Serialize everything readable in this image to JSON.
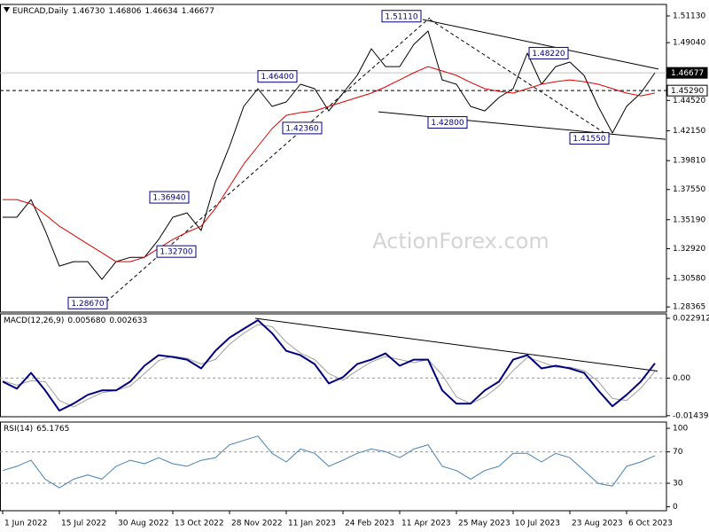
{
  "chart_data": [
    {
      "type": "line",
      "title": "EURCAD,Daily",
      "header_values": [
        "1.46730",
        "1.46806",
        "1.46634",
        "1.46677"
      ],
      "x": [
        0,
        8,
        16,
        24,
        32,
        40,
        48,
        56,
        64,
        72,
        80,
        88,
        96,
        104,
        112,
        120,
        128,
        136,
        144,
        152,
        160,
        168,
        176,
        184,
        192,
        200,
        208,
        216,
        224,
        232,
        240,
        248,
        256,
        264,
        272,
        280,
        288,
        296,
        304,
        312,
        320,
        328,
        336,
        344,
        352,
        360,
        368
      ],
      "xlim": [
        -1.5,
        374.5
      ],
      "ylim": [
        1.2796,
        1.5203
      ],
      "yticks": [
        {
          "value": 1.5113,
          "label": "1.51130"
        },
        {
          "value": 1.4904,
          "label": "1.49040"
        },
        {
          "value": 1.4452,
          "label": "1.44520"
        },
        {
          "value": 1.4215,
          "label": "1.42150"
        },
        {
          "value": 1.3981,
          "label": "1.39810"
        },
        {
          "value": 1.3755,
          "label": "1.37550"
        },
        {
          "value": 1.3519,
          "label": "1.35190"
        },
        {
          "value": 1.3292,
          "label": "1.32920"
        },
        {
          "value": 1.3058,
          "label": "1.30580"
        },
        {
          "value": 1.28365,
          "label": "1.28365"
        }
      ],
      "series": [
        {
          "color": "#000000",
          "width": 1,
          "values": [
            1.3538,
            1.3538,
            1.3676,
            1.3434,
            1.3156,
            1.3191,
            1.3191,
            1.3052,
            1.3191,
            1.3225,
            1.3225,
            1.3364,
            1.3538,
            1.3572,
            1.3434,
            1.3815,
            1.4093,
            1.4405,
            1.4544,
            1.4405,
            1.444,
            1.4579,
            1.4544,
            1.437,
            1.4509,
            1.4648,
            1.4856,
            1.4717,
            1.4717,
            1.4891,
            1.4995,
            1.4613,
            1.4579,
            1.4405,
            1.437,
            1.4475,
            1.4544,
            1.4822,
            1.4579,
            1.4717,
            1.4752,
            1.4648,
            1.4405,
            1.4197,
            1.4405,
            1.4509,
            1.4668
          ]
        },
        {
          "color": "#e00000",
          "width": 1,
          "values": [
            1.3676,
            1.3676,
            1.3642,
            1.3558,
            1.3468,
            1.3399,
            1.3329,
            1.326,
            1.3191,
            1.3191,
            1.3225,
            1.3295,
            1.3364,
            1.342,
            1.3468,
            1.3607,
            1.378,
            1.3954,
            1.4093,
            1.4232,
            1.4336,
            1.4357,
            1.437,
            1.4405,
            1.444,
            1.4475,
            1.4509,
            1.4558,
            1.4613,
            1.4669,
            1.4717,
            1.4683,
            1.4648,
            1.4593,
            1.4544,
            1.4523,
            1.4509,
            1.4544,
            1.4579,
            1.4599,
            1.4613,
            1.4599,
            1.4579,
            1.4544,
            1.4509,
            1.4488,
            1.4509
          ]
        }
      ],
      "lines": [
        {
          "style": "solid",
          "x": [
            237,
            370
          ],
          "values": [
            1.5085,
            1.4697
          ]
        },
        {
          "style": "solid",
          "x": [
            212,
            374
          ],
          "values": [
            1.4363,
            1.4148
          ]
        },
        {
          "style": "dashed",
          "x": [
            58.5,
            241
          ],
          "values": [
            1.2878,
            1.5099
          ]
        },
        {
          "style": "dashed",
          "x": [
            241,
            343.5
          ],
          "values": [
            1.5085,
            1.4162
          ]
        }
      ],
      "annotations": [
        {
          "label": "1.51110",
          "x": 237,
          "value": 1.5111
        },
        {
          "label": "1.48220",
          "x": 296,
          "value": 1.4822
        },
        {
          "label": "1.46400",
          "x": 143,
          "value": 1.464
        },
        {
          "label": "1.42360",
          "x": 157,
          "value": 1.4236
        },
        {
          "label": "1.42800",
          "x": 263,
          "value": 1.428
        },
        {
          "label": "1.41550",
          "x": 343,
          "value": 1.4155
        },
        {
          "label": "1.36940",
          "x": 106,
          "value": 1.3694
        },
        {
          "label": "1.32700",
          "x": 86,
          "value": 1.327
        },
        {
          "label": "1.28670",
          "x": 60,
          "value": 1.2867
        }
      ],
      "price_tags": [
        {
          "value": 1.46677,
          "label": "1.46677",
          "fill": "#000000",
          "text_color": "#ffffff",
          "line_style": "solid",
          "line_color": "#c0c0c0"
        },
        {
          "value": 1.4529,
          "label": "1.45290",
          "fill": "#ffffff",
          "text_color": "#000000",
          "line_style": "dashed",
          "line_color": "#000000"
        }
      ]
    },
    {
      "type": "line",
      "title": "MACD(12,26,9)",
      "header_values": [
        "0.005680",
        "0.002633"
      ],
      "x": [
        0,
        8,
        16,
        24,
        32,
        40,
        48,
        56,
        64,
        72,
        80,
        88,
        96,
        104,
        112,
        120,
        128,
        136,
        144,
        152,
        160,
        168,
        176,
        184,
        192,
        200,
        208,
        216,
        224,
        232,
        240,
        248,
        256,
        264,
        272,
        280,
        288,
        296,
        304,
        312,
        320,
        328,
        336,
        344,
        352,
        360,
        368
      ],
      "xlim": [
        -1.5,
        374.5
      ],
      "ylim": [
        -0.0148,
        0.0246
      ],
      "yticks": [
        0.022912,
        {
          "value": 0,
          "label": "0.00"
        },
        -0.014394
      ],
      "levels": [
        0
      ],
      "series": [
        {
          "color": "#a0a0a0",
          "width": 1,
          "values": [
            -0.001,
            -0.0027,
            -0.001,
            -0.0014,
            -0.0086,
            -0.0111,
            -0.0081,
            -0.0056,
            -0.0047,
            -0.003,
            0.0017,
            0.0067,
            0.0084,
            0.0076,
            0.0054,
            0.0071,
            0.013,
            0.0172,
            0.0205,
            0.0197,
            0.0138,
            0.0096,
            0.0071,
            0.0017,
            -0.0008,
            0.0029,
            0.0062,
            0.0083,
            0.0071,
            0.0059,
            0.0071,
            0.0012,
            -0.0072,
            -0.0098,
            -0.0072,
            -0.003,
            0.0029,
            0.0079,
            0.0062,
            0.0042,
            0.0042,
            0.0029,
            -0.0013,
            -0.0078,
            -0.0086,
            -0.0039,
            0.002633
          ]
        },
        {
          "color": "#000080",
          "width": 2,
          "values": [
            -0.00135,
            -0.00404,
            0.00202,
            -0.00472,
            -0.01247,
            -0.00977,
            -0.0064,
            -0.00472,
            -0.00472,
            -0.00135,
            0.00472,
            0.00876,
            0.00809,
            0.00707,
            0.00371,
            0.01045,
            0.0155,
            0.01885,
            0.0222,
            0.01718,
            0.01045,
            0.00876,
            0.00539,
            -0.00202,
            0.00034,
            0.00539,
            0.00707,
            0.00944,
            0.00472,
            0.00707,
            0.00707,
            -0.00472,
            -0.00977,
            -0.00977,
            -0.00472,
            -0.00135,
            0.00707,
            0.00876,
            0.00371,
            0.00472,
            0.00371,
            0.00202,
            -0.00472,
            -0.01078,
            -0.0064,
            -0.00135,
            0.00568
          ]
        }
      ],
      "lines": [
        {
          "style": "solid",
          "x": [
            142.5,
            369.5
          ],
          "values": [
            0.022912,
            0.0027
          ]
        }
      ]
    },
    {
      "type": "line",
      "title": "RSI(14)",
      "header_values": [
        "65.1765"
      ],
      "x": [
        0,
        8,
        16,
        24,
        32,
        40,
        48,
        56,
        64,
        72,
        80,
        88,
        96,
        104,
        112,
        120,
        128,
        136,
        144,
        152,
        160,
        168,
        176,
        184,
        192,
        200,
        208,
        216,
        224,
        232,
        240,
        248,
        256,
        264,
        272,
        280,
        288,
        296,
        304,
        312,
        320,
        328,
        336,
        344,
        352,
        360,
        368
      ],
      "xlim": [
        -1.5,
        374.5
      ],
      "ylim": [
        -5,
        108
      ],
      "yticks": [
        100,
        70,
        30,
        0
      ],
      "levels": [
        70,
        30
      ],
      "series": [
        {
          "color": "#4682b4",
          "width": 1,
          "values": [
            46.2,
            51.6,
            59.3,
            35.2,
            24.2,
            35.2,
            40.7,
            35.2,
            51.6,
            59.3,
            54.9,
            62.6,
            54.9,
            51.6,
            59.3,
            62.6,
            79.1,
            84.6,
            90.1,
            68.1,
            57.1,
            73.6,
            68.1,
            51.6,
            59.3,
            68.1,
            73.6,
            70.3,
            62.6,
            73.6,
            79.1,
            51.6,
            46.2,
            35.2,
            46.2,
            51.6,
            68.1,
            68.1,
            57.1,
            68.1,
            62.6,
            46.2,
            29.7,
            26.4,
            51.6,
            57.1,
            65.2
          ]
        }
      ],
      "xticks": [
        {
          "value": 0,
          "label": "1 Jun 2022"
        },
        {
          "value": 32,
          "label": "15 Jul 2022"
        },
        {
          "value": 64,
          "label": "30 Aug 2022"
        },
        {
          "value": 96,
          "label": "13 Oct 2022"
        },
        {
          "value": 128,
          "label": "28 Nov 2022"
        },
        {
          "value": 160,
          "label": "11 Jan 2023"
        },
        {
          "value": 192,
          "label": "24 Feb 2023"
        },
        {
          "value": 224,
          "label": "11 Apr 2023"
        },
        {
          "value": 256,
          "label": "25 May 2023"
        },
        {
          "value": 288,
          "label": "10 Jul 2023"
        },
        {
          "value": 320,
          "label": "23 Aug 2023"
        },
        {
          "value": 352,
          "label": "6 Oct 2023"
        }
      ]
    }
  ],
  "watermark": "ActionForex.com"
}
